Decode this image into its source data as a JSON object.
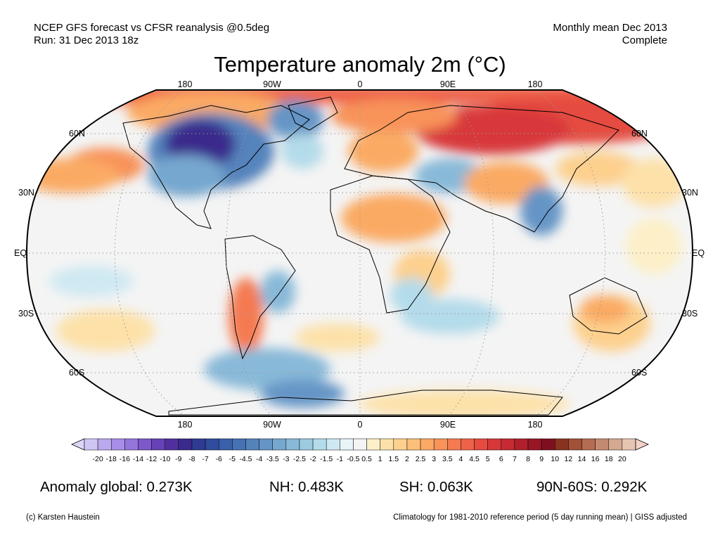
{
  "header": {
    "line1_left": "NCEP GFS forecast vs CFSR reanalysis @0.5deg",
    "line2_left": "Run: 31 Dec 2013 18z",
    "line1_right": "Monthly mean Dec 2013",
    "line2_right": "Complete"
  },
  "title": "Temperature anomaly 2m (°C)",
  "longitude_labels": [
    "180",
    "90W",
    "0",
    "90E",
    "180"
  ],
  "latitude_labels": [
    "60N",
    "30N",
    "EQ",
    "30S",
    "60S"
  ],
  "colorbar": {
    "levels": [
      "-20",
      "-18",
      "-16",
      "-14",
      "-12",
      "-10",
      "-9",
      "-8",
      "-7",
      "-6",
      "-5",
      "-4.5",
      "-4",
      "-3.5",
      "-3",
      "-2.5",
      "-2",
      "-1.5",
      "-1",
      "-0.5",
      "0.5",
      "1",
      "1.5",
      "2",
      "2.5",
      "3",
      "3.5",
      "4",
      "4.5",
      "5",
      "6",
      "7",
      "8",
      "9",
      "10",
      "12",
      "14",
      "16",
      "18",
      "20"
    ],
    "colors": [
      "#cfc6f4",
      "#bba9ef",
      "#a88ee6",
      "#9475db",
      "#7d58cb",
      "#6741b6",
      "#51309e",
      "#3a2a8c",
      "#2f3a92",
      "#304c9d",
      "#3960a8",
      "#4572b2",
      "#5483bc",
      "#6595c6",
      "#76a7cf",
      "#88b9d8",
      "#9ccae1",
      "#b4dbea",
      "#cfe9f2",
      "#e7f4f8",
      "#f4f4f4",
      "#fdf0c8",
      "#fde1a9",
      "#fdd08e",
      "#fcbf79",
      "#fbaa64",
      "#f8935a",
      "#f47a51",
      "#ee6249",
      "#e54b41",
      "#d8373a",
      "#c72a33",
      "#b11f2c",
      "#981626",
      "#7f0f1f",
      "#8a3220",
      "#a25037",
      "#b46d52",
      "#c48a70",
      "#d4a891",
      "#e6c6b2"
    ],
    "arrow_min_color": "#dcd6f7",
    "arrow_max_color": "#f3d3c6"
  },
  "stats": {
    "global": "Anomaly global: 0.273K",
    "nh": "NH: 0.483K",
    "sh": "SH: 0.063K",
    "arctic": "90N-60S: 0.292K"
  },
  "footer": {
    "left": "(c) Karsten Haustein",
    "right": "Climatology for 1981-2010 reference period (5 day running mean) | GISS adjusted"
  }
}
